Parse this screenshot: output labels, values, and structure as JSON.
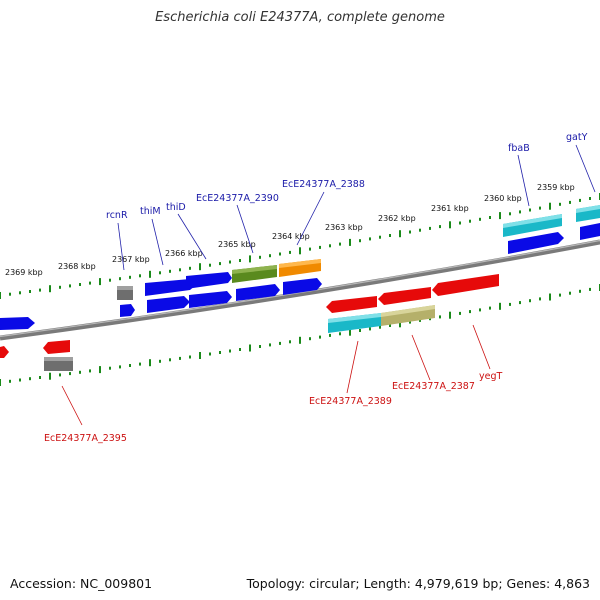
{
  "title": "Escherichia coli E24377A, complete genome",
  "footer": {
    "accession": "Accession: NC_009801",
    "summary": "Topology: circular; Length: 4,979,619 bp; Genes: 4,863"
  },
  "colors": {
    "forward_label": "#1a1aa8",
    "reverse_label": "#cc1111",
    "tick": "#1a8a1a",
    "backbone": "#808080"
  },
  "scale_labels": [
    "2369 kbp",
    "2368 kbp",
    "2367 kbp",
    "2366 kbp",
    "2365 kbp",
    "2364 kbp",
    "2363 kbp",
    "2362 kbp",
    "2361 kbp",
    "2360 kbp",
    "2359 kbp"
  ],
  "gene_labels": {
    "forward": [
      "rcnR",
      "thiM",
      "thiD",
      "EcE24377A_2390",
      "EcE24377A_2388",
      "fbaB",
      "gatY"
    ],
    "reverse": [
      "EcE24377A_2395",
      "EcE24377A_2389",
      "EcE24377A_2387",
      "yegT"
    ]
  }
}
